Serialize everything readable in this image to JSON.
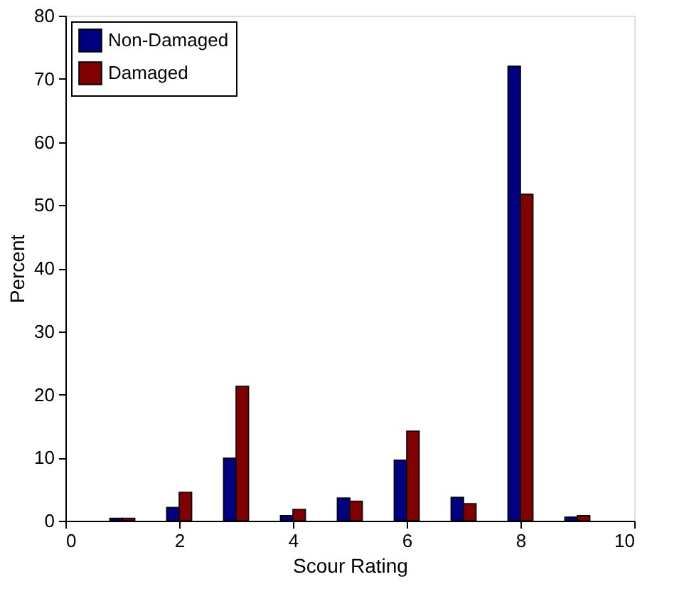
{
  "chart_data": {
    "type": "bar",
    "xlabel": "Scour Rating",
    "ylabel": "Percent",
    "x": [
      1,
      2,
      3,
      4,
      5,
      6,
      7,
      8,
      9
    ],
    "series": [
      {
        "name": "Non-Damaged",
        "color": "#000080",
        "values": [
          0.4,
          2.1,
          9.9,
          0.8,
          3.6,
          9.6,
          3.7,
          72,
          0.6
        ]
      },
      {
        "name": "Damaged",
        "color": "#800000",
        "values": [
          0.4,
          4.5,
          21.3,
          1.8,
          3.1,
          14.2,
          2.7,
          51.7,
          0.8
        ]
      }
    ],
    "xlim": [
      0,
      10
    ],
    "xticks": [
      0,
      2,
      4,
      6,
      8,
      10
    ],
    "ylim": [
      0,
      80
    ],
    "yticks": [
      0,
      10,
      20,
      30,
      40,
      50,
      60,
      70,
      80
    ],
    "grid": false,
    "legend": "top left"
  }
}
